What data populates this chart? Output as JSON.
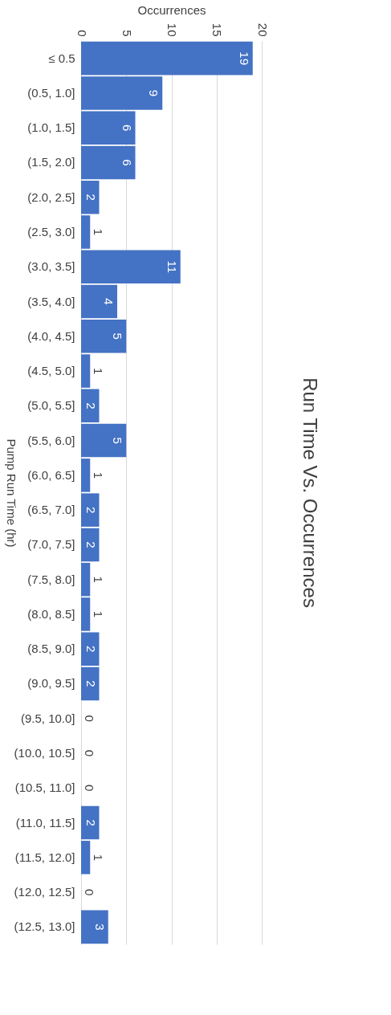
{
  "chart_data": {
    "type": "bar",
    "orientation": "horizontal",
    "title": "Run Time Vs. Occurrences",
    "xlabel": "Occurrences",
    "ylabel": "Pump Run Time (hr)",
    "categories": [
      "≤ 0.5",
      "(0.5, 1.0]",
      "(1.0, 1.5]",
      "(1.5, 2.0]",
      "(2.0, 2.5]",
      "(2.5, 3.0]",
      "(3.0, 3.5]",
      "(3.5, 4.0]",
      "(4.0, 4.5]",
      "(4.5, 5.0]",
      "(5.0, 5.5]",
      "(5.5, 6.0]",
      "(6.0, 6.5]",
      "(6.5, 7.0]",
      "(7.0, 7.5]",
      "(7.5, 8.0]",
      "(8.0, 8.5]",
      "(8.5, 9.0]",
      "(9.0, 9.5]",
      "(9.5, 10.0]",
      "(10.0, 10.5]",
      "(10.5, 11.0]",
      "(11.0, 11.5]",
      "(11.5, 12.0]",
      "(12.0, 12.5]",
      "(12.5, 13.0]"
    ],
    "values": [
      19,
      9,
      6,
      6,
      2,
      1,
      11,
      4,
      5,
      1,
      2,
      5,
      1,
      2,
      2,
      1,
      1,
      2,
      2,
      0,
      0,
      0,
      2,
      1,
      0,
      3
    ],
    "color": "#4472c4",
    "xlim": [
      0,
      20
    ],
    "xticks": [
      0,
      5,
      10,
      15,
      20
    ],
    "grid": "x",
    "data_labels": true
  }
}
